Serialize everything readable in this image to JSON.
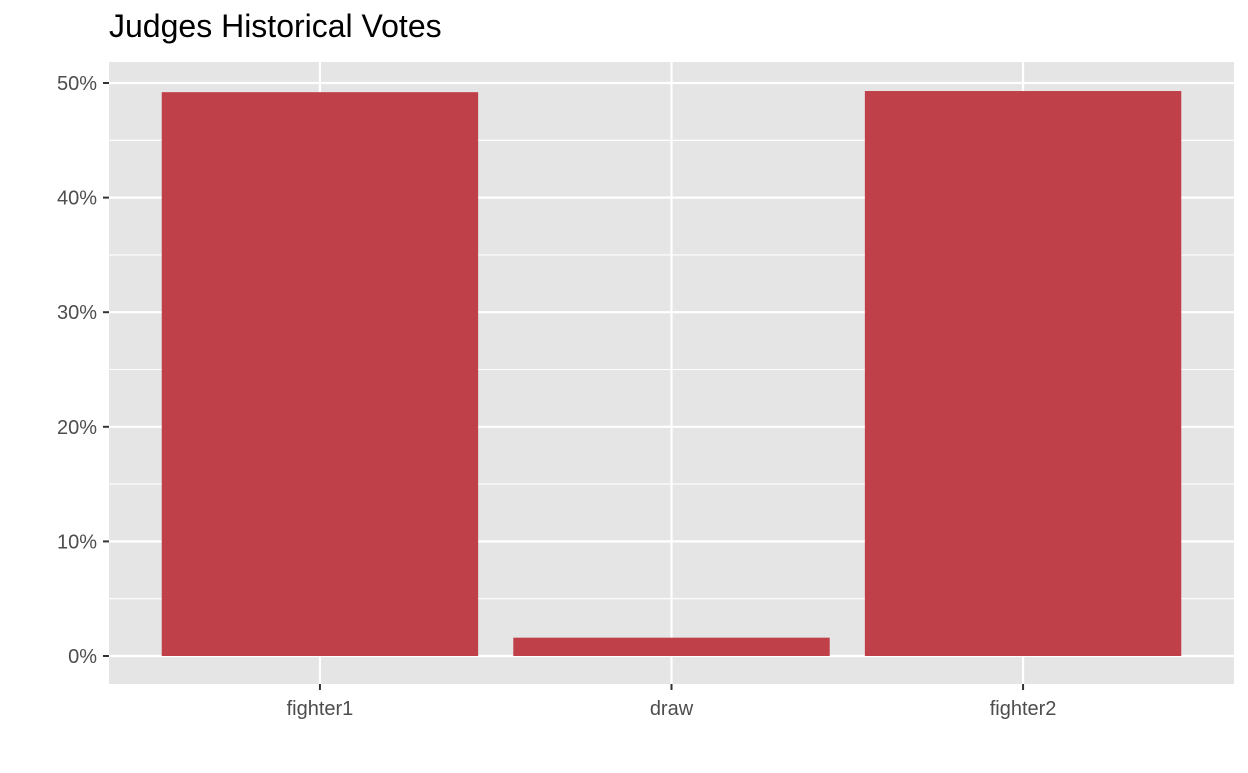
{
  "chart_data": {
    "type": "bar",
    "title": "Judges Historical Votes",
    "xlabel": "",
    "ylabel": "",
    "categories": [
      "fighter1",
      "draw",
      "fighter2"
    ],
    "values": [
      49.2,
      1.6,
      49.3
    ],
    "unit": "%",
    "ylim": [
      0,
      52.5
    ],
    "yticks": [
      0,
      10,
      20,
      30,
      40,
      50
    ],
    "ytick_labels": [
      "0%",
      "10%",
      "20%",
      "30%",
      "40%",
      "50%"
    ],
    "grid": true,
    "legend": "none",
    "colors": {
      "bar": "#C0404A",
      "panel": "#E5E5E5",
      "grid": "#FFFFFF",
      "tick_text": "#4D4D4D",
      "tick_mark": "#333333"
    }
  }
}
